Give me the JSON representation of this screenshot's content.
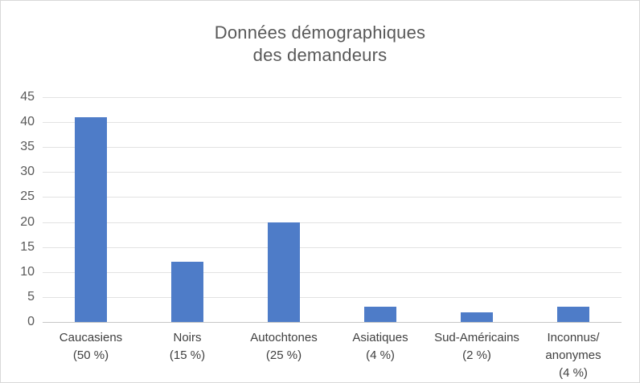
{
  "title": {
    "full": "Données démographiques des demandeurs"
  },
  "colors": {
    "bar": "#4e7cc8",
    "gridline": "#e2e2e2",
    "axis_line": "#c6c6c6",
    "title_text": "#595959",
    "y_tick_text": "#595959",
    "category_text": "#3f3f3f",
    "border": "#d9d9d9",
    "background": "#ffffff"
  },
  "chart_data": {
    "type": "bar",
    "title": "Données démographiques des demandeurs",
    "title_lines": [
      "Données démographiques",
      "des demandeurs"
    ],
    "categories": [
      "Caucasiens (50 %)",
      "Noirs (15 %)",
      "Autochtones (25 %)",
      "Asiatiques (4 %)",
      "Sud-Américains (2 %)",
      "Inconnus/anonymes (4 %)"
    ],
    "category_lines": [
      [
        "Caucasiens",
        "(50 %)"
      ],
      [
        "Noirs",
        "(15 %)"
      ],
      [
        "Autochtones",
        "(25 %)"
      ],
      [
        "Asiatiques",
        "(4 %)"
      ],
      [
        "Sud-Américains",
        "(2 %)"
      ],
      [
        "Inconnus/",
        "anonymes",
        "(4 %)"
      ]
    ],
    "values": [
      41,
      12,
      20,
      3,
      2,
      3
    ],
    "percent_labels": [
      "50 %",
      "15 %",
      "25 %",
      "4 %",
      "2 %",
      "4 %"
    ],
    "xlabel": "",
    "ylabel": "",
    "ylim": [
      0,
      45
    ],
    "yticks": [
      0,
      5,
      10,
      15,
      20,
      25,
      30,
      35,
      40,
      45
    ],
    "grid": "horizontal-only",
    "legend": "none",
    "bar_color": "#4e7cc8"
  }
}
